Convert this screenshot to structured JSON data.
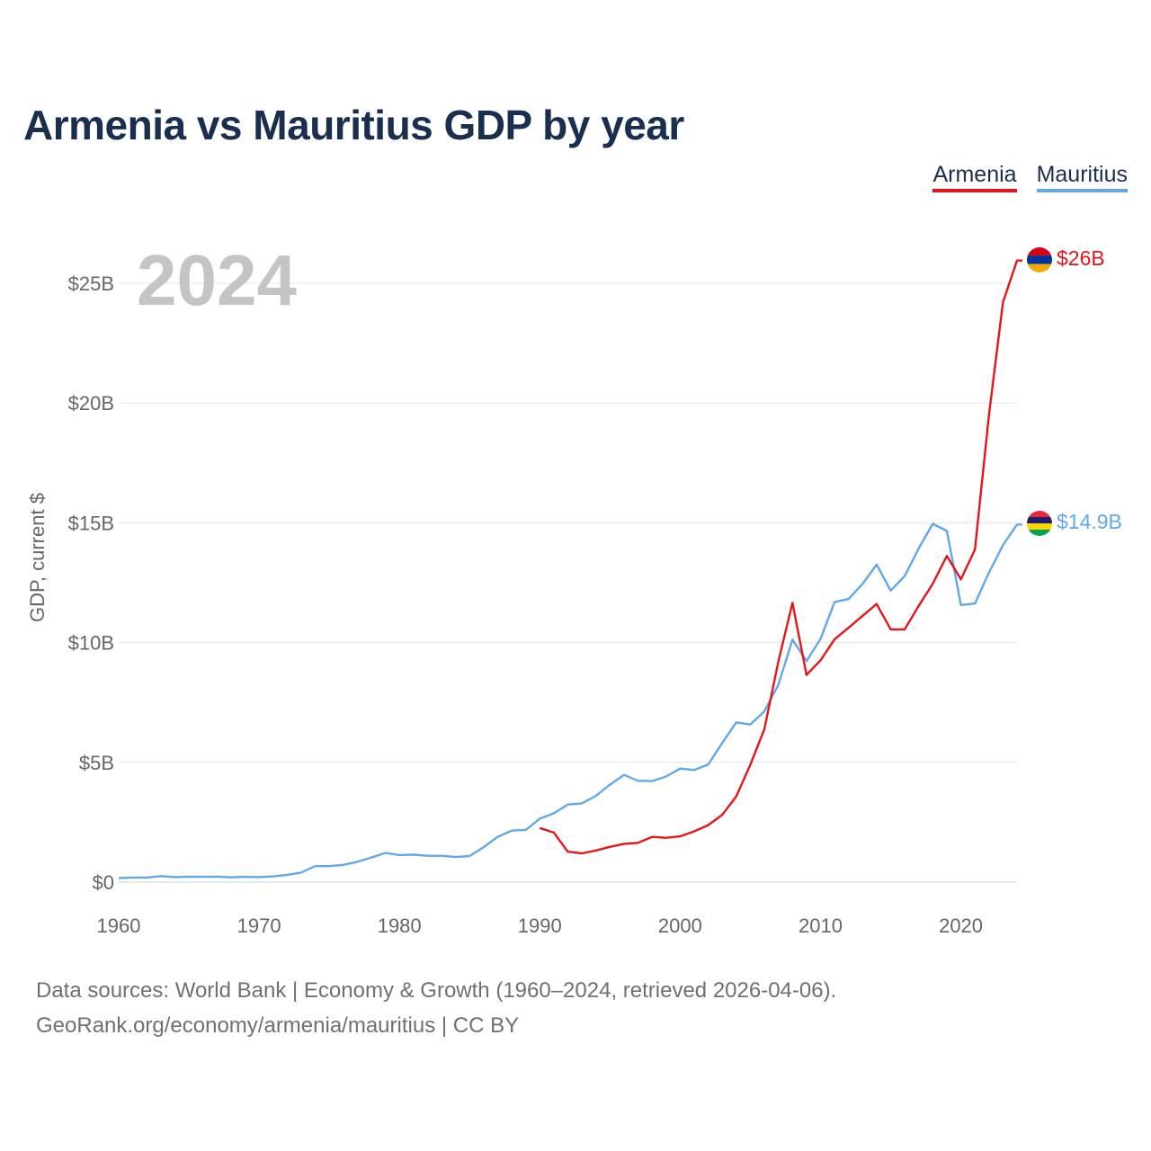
{
  "title": "Armenia vs Mauritius GDP by year",
  "legend": {
    "armenia": "Armenia",
    "mauritius": "Mauritius"
  },
  "footer": {
    "line1": "Data sources: World Bank | Economy & Growth (1960–2024, retrieved 2026-04-06).",
    "line2": "GeoRank.org/economy/armenia/mauritius | CC BY"
  },
  "colors": {
    "armenia": "#e8141b",
    "mauritius": "#63a8e6",
    "title": "#1a2e4f",
    "grid": "#e6e6e6",
    "axis": "#666666"
  },
  "chart_data": {
    "type": "line",
    "title": "Armenia vs Mauritius GDP by year",
    "ylabel": "GDP, current $",
    "xlabel": "",
    "year_label": "2024",
    "xlim": [
      1960,
      2024
    ],
    "ylim": [
      0,
      27
    ],
    "x_ticks": [
      {
        "value": 1960,
        "label": "1960"
      },
      {
        "value": 1970,
        "label": "1970"
      },
      {
        "value": 1980,
        "label": "1980"
      },
      {
        "value": 1990,
        "label": "1990"
      },
      {
        "value": 2000,
        "label": "2000"
      },
      {
        "value": 2010,
        "label": "2010"
      },
      {
        "value": 2020,
        "label": "2020"
      }
    ],
    "y_ticks": [
      {
        "value": 0,
        "label": "$0"
      },
      {
        "value": 5,
        "label": "$5B"
      },
      {
        "value": 10,
        "label": "$10B"
      },
      {
        "value": 15,
        "label": "$15B"
      },
      {
        "value": 20,
        "label": "$20B"
      },
      {
        "value": 25,
        "label": "$25B"
      }
    ],
    "series": [
      {
        "name": "Armenia",
        "key": "armenia",
        "end_label": "$26B",
        "x": [
          1990,
          1991,
          1992,
          1993,
          1994,
          1995,
          1996,
          1997,
          1998,
          1999,
          2000,
          2001,
          2002,
          2003,
          2004,
          2005,
          2006,
          2007,
          2008,
          2009,
          2010,
          2011,
          2012,
          2013,
          2014,
          2015,
          2016,
          2017,
          2018,
          2019,
          2020,
          2021,
          2022,
          2023,
          2024
        ],
        "values": [
          2.26,
          2.07,
          1.27,
          1.2,
          1.32,
          1.47,
          1.6,
          1.64,
          1.89,
          1.85,
          1.91,
          2.12,
          2.38,
          2.81,
          3.58,
          4.9,
          6.38,
          9.21,
          11.66,
          8.65,
          9.26,
          10.14,
          10.62,
          11.12,
          11.61,
          10.55,
          10.55,
          11.53,
          12.46,
          13.62,
          12.64,
          13.88,
          19.5,
          24.21,
          25.95
        ]
      },
      {
        "name": "Mauritius",
        "key": "mauritius",
        "end_label": "$14.9B",
        "x": [
          1960,
          1961,
          1962,
          1963,
          1964,
          1965,
          1966,
          1967,
          1968,
          1969,
          1970,
          1971,
          1972,
          1973,
          1974,
          1975,
          1976,
          1977,
          1978,
          1979,
          1980,
          1981,
          1982,
          1983,
          1984,
          1985,
          1986,
          1987,
          1988,
          1989,
          1990,
          1991,
          1992,
          1993,
          1994,
          1995,
          1996,
          1997,
          1998,
          1999,
          2000,
          2001,
          2002,
          2003,
          2004,
          2005,
          2006,
          2007,
          2008,
          2009,
          2010,
          2011,
          2012,
          2013,
          2014,
          2015,
          2016,
          2017,
          2018,
          2019,
          2020,
          2021,
          2022,
          2023,
          2024
        ],
        "values": [
          0.17,
          0.19,
          0.19,
          0.25,
          0.21,
          0.23,
          0.22,
          0.23,
          0.2,
          0.22,
          0.21,
          0.24,
          0.3,
          0.4,
          0.67,
          0.67,
          0.72,
          0.85,
          1.03,
          1.22,
          1.13,
          1.15,
          1.1,
          1.1,
          1.05,
          1.09,
          1.46,
          1.89,
          2.15,
          2.18,
          2.65,
          2.87,
          3.24,
          3.29,
          3.6,
          4.07,
          4.48,
          4.23,
          4.22,
          4.41,
          4.74,
          4.68,
          4.91,
          5.81,
          6.67,
          6.58,
          7.13,
          8.24,
          10.12,
          9.23,
          10.15,
          11.69,
          11.82,
          12.45,
          13.26,
          12.17,
          12.78,
          13.93,
          14.96,
          14.66,
          11.57,
          11.63,
          12.92,
          14.07,
          14.93
        ]
      }
    ]
  }
}
